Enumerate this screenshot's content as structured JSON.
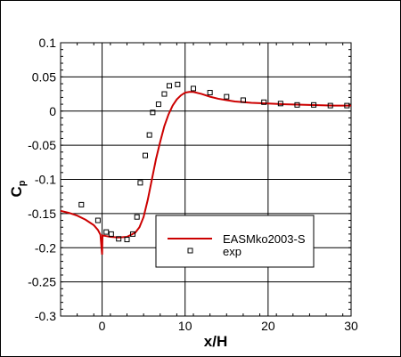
{
  "chart_data": {
    "type": "line",
    "xlabel": "x/H",
    "ylabel": "C",
    "ylabel_sub": "p",
    "xlim": [
      -5,
      30
    ],
    "ylim": [
      -0.3,
      0.1
    ],
    "x_ticks": [
      0,
      10,
      20,
      30
    ],
    "x_tick_labels": [
      "0",
      "10",
      "20",
      "30"
    ],
    "y_ticks": [
      -0.3,
      -0.25,
      -0.2,
      -0.15,
      -0.1,
      -0.05,
      0,
      0.05,
      0.1
    ],
    "y_tick_labels": [
      "-0.3",
      "-0.25",
      "-0.2",
      "-0.15",
      "-0.1",
      "-0.05",
      "0",
      "0.05",
      "0.1"
    ],
    "grid": true,
    "legend_position": "lower-center",
    "series": [
      {
        "name": "EASMko2003-S",
        "style": "line",
        "color": "#cc0000",
        "points": [
          [
            -5,
            -0.146
          ],
          [
            -4,
            -0.149
          ],
          [
            -3,
            -0.153
          ],
          [
            -2,
            -0.159
          ],
          [
            -1,
            -0.167
          ],
          [
            -0.5,
            -0.174
          ],
          [
            -0.2,
            -0.181
          ],
          [
            0,
            -0.21
          ],
          [
            0.05,
            -0.182
          ],
          [
            0.5,
            -0.183
          ],
          [
            1,
            -0.184
          ],
          [
            2,
            -0.185
          ],
          [
            3,
            -0.184
          ],
          [
            4,
            -0.178
          ],
          [
            4.5,
            -0.17
          ],
          [
            5,
            -0.155
          ],
          [
            5.5,
            -0.13
          ],
          [
            6,
            -0.1
          ],
          [
            6.5,
            -0.07
          ],
          [
            7,
            -0.045
          ],
          [
            7.5,
            -0.022
          ],
          [
            8,
            -0.005
          ],
          [
            8.5,
            0.008
          ],
          [
            9,
            0.017
          ],
          [
            9.5,
            0.023
          ],
          [
            10,
            0.027
          ],
          [
            10.5,
            0.028
          ],
          [
            11,
            0.028
          ],
          [
            12,
            0.025
          ],
          [
            13,
            0.021
          ],
          [
            14,
            0.018
          ],
          [
            15,
            0.016
          ],
          [
            16,
            0.014
          ],
          [
            18,
            0.012
          ],
          [
            20,
            0.011
          ],
          [
            22,
            0.01
          ],
          [
            25,
            0.009
          ],
          [
            28,
            0.008
          ],
          [
            30,
            0.008
          ]
        ]
      },
      {
        "name": "exp",
        "style": "marker",
        "color": "#000000",
        "points": [
          [
            -2.5,
            -0.137
          ],
          [
            -0.5,
            -0.16
          ],
          [
            0.5,
            -0.177
          ],
          [
            1.1,
            -0.18
          ],
          [
            2,
            -0.187
          ],
          [
            3,
            -0.188
          ],
          [
            3.7,
            -0.18
          ],
          [
            4.2,
            -0.155
          ],
          [
            4.6,
            -0.105
          ],
          [
            5.2,
            -0.065
          ],
          [
            5.7,
            -0.035
          ],
          [
            6.1,
            -0.002
          ],
          [
            6.8,
            0.01
          ],
          [
            7.5,
            0.025
          ],
          [
            8.1,
            0.037
          ],
          [
            9.1,
            0.039
          ],
          [
            11,
            0.033
          ],
          [
            13,
            0.027
          ],
          [
            15,
            0.021
          ],
          [
            17,
            0.016
          ],
          [
            19.5,
            0.013
          ],
          [
            21.5,
            0.011
          ],
          [
            23.5,
            0.009
          ],
          [
            25.5,
            0.009
          ],
          [
            27.5,
            0.008
          ],
          [
            29.5,
            0.008
          ]
        ]
      }
    ]
  }
}
